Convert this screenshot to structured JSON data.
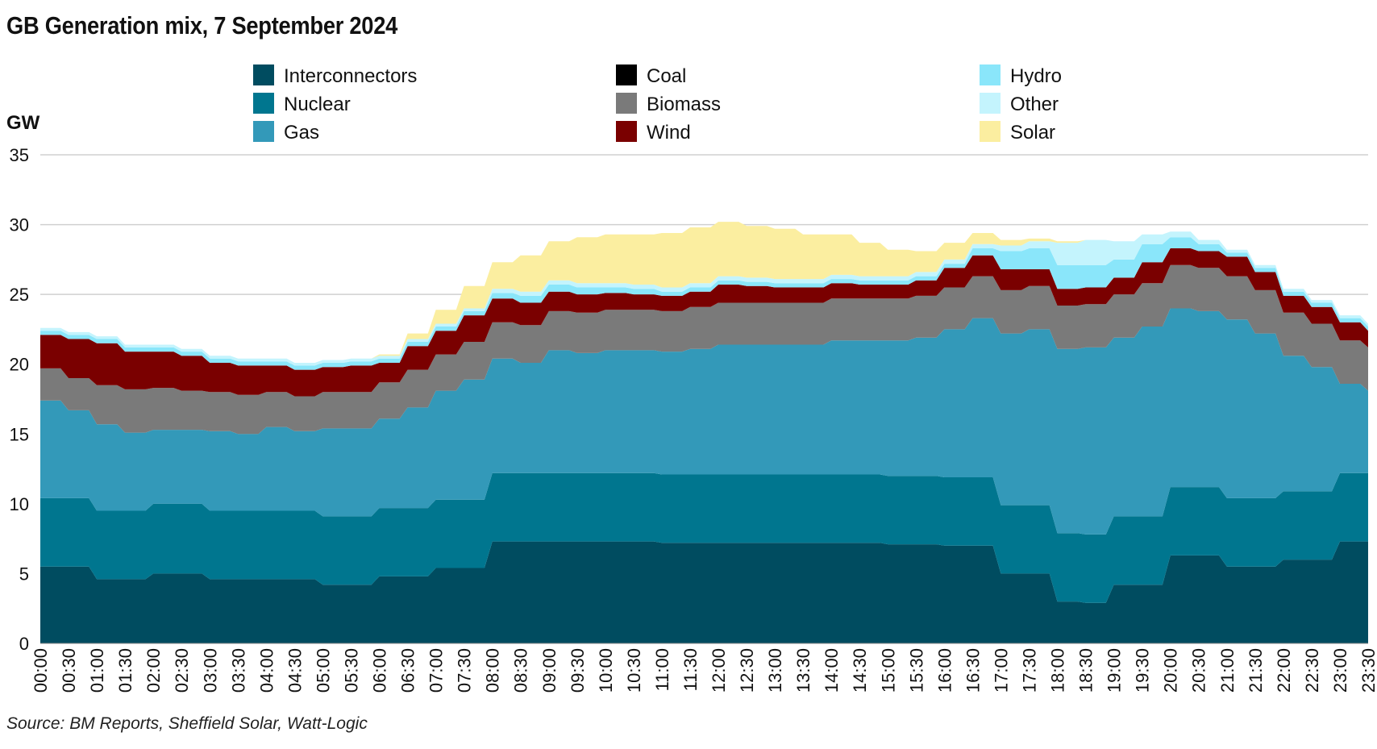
{
  "source": "Source: BM Reports, Sheffield Solar, Watt-Logic",
  "chart_data": {
    "type": "area",
    "title": "GB Generation mix, 7 September 2024",
    "ylabel": "GW",
    "xlabel": "",
    "ylim": [
      0,
      35
    ],
    "yticks": [
      0,
      5,
      10,
      15,
      20,
      25,
      30,
      35
    ],
    "grid": true,
    "legend_position": "top",
    "stacked": true,
    "x": [
      "00:00",
      "00:30",
      "01:00",
      "01:30",
      "02:00",
      "02:30",
      "03:00",
      "03:30",
      "04:00",
      "04:30",
      "05:00",
      "05:30",
      "06:00",
      "06:30",
      "07:00",
      "07:30",
      "08:00",
      "08:30",
      "09:00",
      "09:30",
      "10:00",
      "10:30",
      "11:00",
      "11:30",
      "12:00",
      "12:30",
      "13:00",
      "13:30",
      "14:00",
      "14:30",
      "15:00",
      "15:30",
      "16:00",
      "16:30",
      "17:00",
      "17:30",
      "18:00",
      "18:30",
      "19:00",
      "19:30",
      "20:00",
      "20:30",
      "21:00",
      "21:30",
      "22:00",
      "22:30",
      "23:00",
      "23:30"
    ],
    "series": [
      {
        "name": "Interconnectors",
        "color": "#004c60",
        "values": [
          5.5,
          5.5,
          4.6,
          4.6,
          5.0,
          5.0,
          4.6,
          4.6,
          4.6,
          4.6,
          4.2,
          4.2,
          4.8,
          4.8,
          5.4,
          5.4,
          7.3,
          7.3,
          7.3,
          7.3,
          7.3,
          7.3,
          7.2,
          7.2,
          7.2,
          7.2,
          7.2,
          7.2,
          7.2,
          7.2,
          7.1,
          7.1,
          7.0,
          7.0,
          5.0,
          5.0,
          3.0,
          2.9,
          4.2,
          4.2,
          6.3,
          6.3,
          5.5,
          5.5,
          6.0,
          6.0,
          7.3,
          7.3
        ]
      },
      {
        "name": "Nuclear",
        "color": "#00768f",
        "values": [
          4.9,
          4.9,
          4.9,
          4.9,
          5.0,
          5.0,
          4.9,
          4.9,
          4.9,
          4.9,
          4.9,
          4.9,
          4.9,
          4.9,
          4.9,
          4.9,
          4.9,
          4.9,
          4.9,
          4.9,
          4.9,
          4.9,
          4.9,
          4.9,
          4.9,
          4.9,
          4.9,
          4.9,
          4.9,
          4.9,
          4.9,
          4.9,
          4.9,
          4.9,
          4.9,
          4.9,
          4.9,
          4.9,
          4.9,
          4.9,
          4.9,
          4.9,
          4.9,
          4.9,
          4.9,
          4.9,
          4.9,
          4.9
        ]
      },
      {
        "name": "Gas",
        "color": "#3399b9",
        "values": [
          7.0,
          6.3,
          6.2,
          5.6,
          5.3,
          5.3,
          5.7,
          5.5,
          6.0,
          5.7,
          6.3,
          6.3,
          6.4,
          7.2,
          7.8,
          8.6,
          8.2,
          7.9,
          8.8,
          8.6,
          8.8,
          8.8,
          8.8,
          9.0,
          9.3,
          9.3,
          9.3,
          9.3,
          9.6,
          9.6,
          9.7,
          9.9,
          10.6,
          11.4,
          12.3,
          12.6,
          13.2,
          13.4,
          12.8,
          13.6,
          12.8,
          12.6,
          12.8,
          11.8,
          9.7,
          8.9,
          6.4,
          5.9
        ]
      },
      {
        "name": "Coal",
        "color": "#000000",
        "values": [
          0,
          0,
          0,
          0,
          0,
          0,
          0,
          0,
          0,
          0,
          0,
          0,
          0,
          0,
          0,
          0,
          0,
          0,
          0,
          0,
          0,
          0,
          0,
          0,
          0,
          0,
          0,
          0,
          0,
          0,
          0,
          0,
          0,
          0,
          0,
          0,
          0,
          0,
          0,
          0,
          0,
          0,
          0,
          0,
          0,
          0,
          0,
          0
        ]
      },
      {
        "name": "Biomass",
        "color": "#7a7a7a",
        "values": [
          2.3,
          2.3,
          2.8,
          3.1,
          3.0,
          2.8,
          2.8,
          2.8,
          2.5,
          2.5,
          2.6,
          2.6,
          2.6,
          2.7,
          2.6,
          2.7,
          2.6,
          2.7,
          2.8,
          2.9,
          2.9,
          2.9,
          2.9,
          3.0,
          3.0,
          3.0,
          3.0,
          3.0,
          3.0,
          3.0,
          3.0,
          3.0,
          3.0,
          3.0,
          3.1,
          3.1,
          3.1,
          3.1,
          3.1,
          3.1,
          3.1,
          3.1,
          3.1,
          3.1,
          3.1,
          3.1,
          3.1,
          3.1
        ]
      },
      {
        "name": "Wind",
        "color": "#7a0000",
        "values": [
          2.4,
          2.8,
          3.0,
          2.7,
          2.6,
          2.5,
          2.1,
          2.1,
          1.9,
          1.9,
          1.8,
          1.9,
          1.4,
          1.7,
          1.7,
          1.9,
          1.7,
          1.6,
          1.4,
          1.3,
          1.2,
          1.1,
          1.1,
          1.1,
          1.3,
          1.2,
          1.1,
          1.1,
          1.1,
          1.0,
          1.0,
          1.1,
          1.4,
          1.5,
          1.5,
          1.2,
          1.2,
          1.2,
          1.2,
          1.5,
          1.2,
          1.2,
          1.4,
          1.3,
          1.2,
          1.2,
          1.3,
          1.2
        ]
      },
      {
        "name": "Hydro",
        "color": "#8ae6fa",
        "values": [
          0.3,
          0.3,
          0.3,
          0.3,
          0.3,
          0.3,
          0.3,
          0.3,
          0.3,
          0.3,
          0.3,
          0.3,
          0.3,
          0.3,
          0.3,
          0.3,
          0.4,
          0.5,
          0.5,
          0.5,
          0.4,
          0.4,
          0.3,
          0.3,
          0.3,
          0.3,
          0.3,
          0.3,
          0.3,
          0.3,
          0.3,
          0.3,
          0.3,
          0.5,
          1.3,
          1.5,
          1.7,
          1.6,
          1.3,
          1.3,
          0.8,
          0.5,
          0.3,
          0.3,
          0.3,
          0.3,
          0.3,
          0.3
        ]
      },
      {
        "name": "Other",
        "color": "#c4f4fd",
        "values": [
          0.2,
          0.2,
          0.2,
          0.2,
          0.2,
          0.2,
          0.2,
          0.2,
          0.2,
          0.2,
          0.2,
          0.2,
          0.2,
          0.2,
          0.2,
          0.2,
          0.3,
          0.3,
          0.3,
          0.3,
          0.3,
          0.3,
          0.3,
          0.3,
          0.3,
          0.3,
          0.3,
          0.3,
          0.3,
          0.3,
          0.3,
          0.3,
          0.3,
          0.3,
          0.4,
          0.5,
          1.6,
          1.8,
          1.3,
          0.7,
          0.4,
          0.3,
          0.2,
          0.2,
          0.2,
          0.2,
          0.2,
          0.2
        ]
      },
      {
        "name": "Solar",
        "color": "#fbeea0",
        "values": [
          0,
          0,
          0,
          0,
          0,
          0,
          0,
          0,
          0,
          0,
          0,
          0,
          0.1,
          0.4,
          1.0,
          1.6,
          1.9,
          2.6,
          2.8,
          3.3,
          3.5,
          3.6,
          3.9,
          4.0,
          3.9,
          3.7,
          3.6,
          3.2,
          2.9,
          2.4,
          1.9,
          1.5,
          1.2,
          0.8,
          0.4,
          0.2,
          0.1,
          0,
          0,
          0,
          0,
          0,
          0,
          0,
          0,
          0,
          0,
          0
        ]
      }
    ]
  }
}
